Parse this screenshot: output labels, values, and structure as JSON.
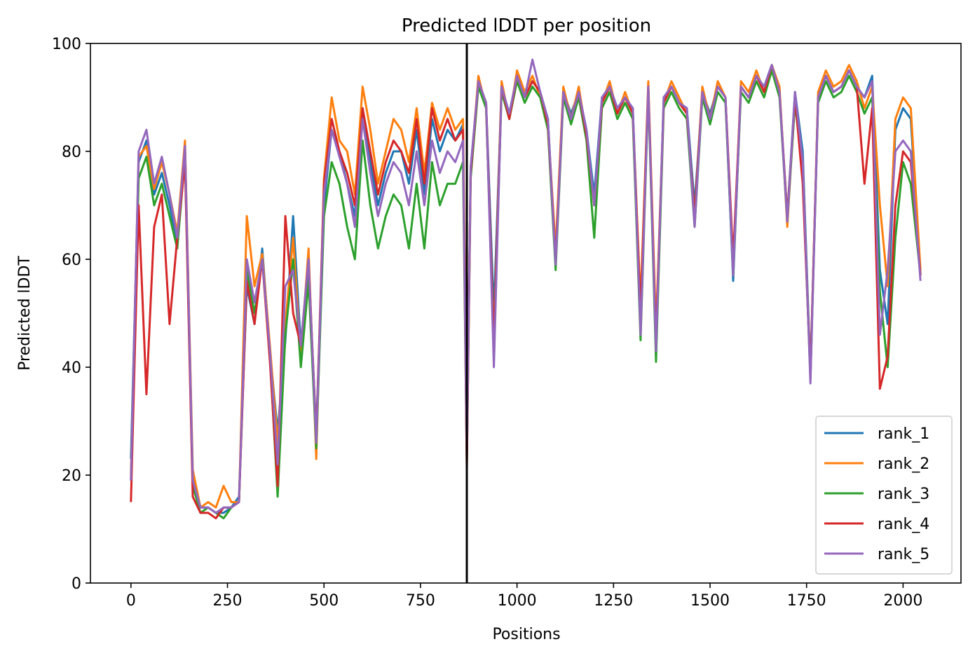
{
  "chart_data": {
    "type": "line",
    "title": "Predicted lDDT per position",
    "xlabel": "Positions",
    "ylabel": "Predicted lDDT",
    "xlim": [
      -105,
      2150
    ],
    "ylim": [
      0,
      100
    ],
    "xticks": [
      0,
      250,
      500,
      750,
      1000,
      1250,
      1500,
      1750,
      2000
    ],
    "yticks": [
      0,
      20,
      40,
      60,
      80,
      100
    ],
    "vline": 870,
    "legend_position": "lower-right",
    "x": [
      0,
      20,
      40,
      60,
      80,
      100,
      120,
      140,
      160,
      180,
      200,
      220,
      240,
      260,
      280,
      300,
      320,
      340,
      360,
      380,
      400,
      420,
      440,
      460,
      480,
      500,
      520,
      540,
      560,
      580,
      600,
      620,
      640,
      660,
      680,
      700,
      720,
      740,
      760,
      780,
      800,
      820,
      840,
      860,
      870,
      880,
      900,
      920,
      940,
      960,
      980,
      1000,
      1020,
      1040,
      1060,
      1080,
      1100,
      1120,
      1140,
      1160,
      1180,
      1200,
      1220,
      1240,
      1260,
      1280,
      1300,
      1320,
      1340,
      1360,
      1380,
      1400,
      1420,
      1440,
      1460,
      1480,
      1500,
      1520,
      1540,
      1560,
      1580,
      1600,
      1620,
      1640,
      1660,
      1680,
      1700,
      1720,
      1740,
      1760,
      1780,
      1800,
      1820,
      1840,
      1860,
      1880,
      1900,
      1920,
      1940,
      1960,
      1980,
      2000,
      2020,
      2045
    ],
    "series": [
      {
        "name": "rank_1",
        "color": "#1f77b4",
        "values": [
          23,
          78,
          82,
          72,
          76,
          70,
          63,
          81,
          20,
          14,
          14,
          13,
          13,
          14,
          16,
          55,
          48,
          62,
          43,
          28,
          45,
          68,
          44,
          58,
          28,
          70,
          84,
          80,
          74,
          68,
          88,
          78,
          70,
          76,
          80,
          80,
          74,
          84,
          72,
          86,
          80,
          84,
          82,
          85,
          24,
          77,
          93,
          89,
          50,
          92,
          87,
          94,
          90,
          93,
          91,
          86,
          60,
          91,
          87,
          91,
          84,
          72,
          90,
          92,
          88,
          90,
          88,
          50,
          92,
          45,
          90,
          92,
          89,
          88,
          70,
          91,
          87,
          92,
          90,
          56,
          92,
          90,
          94,
          92,
          96,
          91,
          68,
          91,
          80,
          39,
          90,
          94,
          91,
          92,
          95,
          92,
          90,
          94,
          58,
          48,
          84,
          88,
          86,
          57
        ]
      },
      {
        "name": "rank_2",
        "color": "#ff7f0e",
        "values": [
          20,
          79,
          81,
          73,
          78,
          72,
          65,
          82,
          21,
          14,
          15,
          14,
          18,
          15,
          15,
          68,
          55,
          61,
          44,
          26,
          48,
          64,
          42,
          62,
          23,
          75,
          90,
          82,
          80,
          72,
          92,
          84,
          74,
          80,
          86,
          84,
          78,
          88,
          76,
          89,
          84,
          88,
          84,
          86,
          28,
          76,
          94,
          88,
          45,
          93,
          86,
          95,
          91,
          94,
          90,
          85,
          62,
          92,
          86,
          92,
          83,
          70,
          89,
          93,
          87,
          91,
          87,
          52,
          93,
          47,
          89,
          93,
          90,
          87,
          68,
          92,
          86,
          93,
          90,
          58,
          93,
          91,
          95,
          91,
          96,
          92,
          66,
          90,
          78,
          38,
          91,
          95,
          92,
          93,
          96,
          93,
          88,
          92,
          70,
          55,
          86,
          90,
          88,
          58
        ]
      },
      {
        "name": "rank_3",
        "color": "#2ca02c",
        "values": [
          19,
          75,
          79,
          70,
          74,
          68,
          62,
          79,
          18,
          13,
          14,
          13,
          12,
          14,
          15,
          58,
          50,
          60,
          42,
          16,
          46,
          60,
          40,
          56,
          25,
          68,
          78,
          74,
          66,
          60,
          82,
          70,
          62,
          68,
          72,
          70,
          62,
          74,
          62,
          78,
          70,
          74,
          74,
          78,
          22,
          75,
          92,
          88,
          44,
          91,
          86,
          93,
          89,
          92,
          90,
          84,
          58,
          90,
          85,
          90,
          82,
          64,
          88,
          91,
          86,
          89,
          86,
          45,
          91,
          41,
          88,
          91,
          88,
          86,
          66,
          90,
          85,
          91,
          89,
          57,
          91,
          89,
          93,
          90,
          95,
          90,
          67,
          89,
          76,
          38,
          89,
          93,
          90,
          91,
          94,
          91,
          87,
          90,
          54,
          40,
          64,
          78,
          74,
          57
        ]
      },
      {
        "name": "rank_4",
        "color": "#d62728",
        "values": [
          15,
          70,
          35,
          66,
          72,
          48,
          64,
          78,
          16,
          13,
          13,
          12,
          14,
          14,
          15,
          56,
          48,
          60,
          41,
          18,
          68,
          50,
          44,
          60,
          27,
          74,
          86,
          80,
          76,
          70,
          88,
          80,
          72,
          78,
          82,
          80,
          76,
          86,
          74,
          88,
          82,
          86,
          82,
          84,
          21,
          76,
          93,
          89,
          44,
          92,
          86,
          94,
          90,
          93,
          91,
          85,
          60,
          91,
          86,
          91,
          83,
          70,
          89,
          92,
          87,
          90,
          87,
          50,
          92,
          45,
          89,
          92,
          89,
          87,
          68,
          91,
          86,
          92,
          90,
          60,
          92,
          90,
          94,
          91,
          96,
          91,
          68,
          90,
          74,
          39,
          90,
          94,
          91,
          92,
          95,
          92,
          74,
          88,
          36,
          42,
          70,
          80,
          78,
          57
        ]
      },
      {
        "name": "rank_5",
        "color": "#9467bd",
        "values": [
          19,
          80,
          84,
          74,
          79,
          72,
          64,
          81,
          19,
          14,
          14,
          13,
          14,
          14,
          15,
          60,
          52,
          60,
          43,
          22,
          55,
          58,
          44,
          60,
          26,
          72,
          84,
          79,
          74,
          66,
          86,
          76,
          68,
          74,
          78,
          76,
          70,
          80,
          70,
          82,
          76,
          80,
          78,
          82,
          24,
          77,
          93,
          89,
          40,
          92,
          87,
          94,
          90,
          97,
          91,
          86,
          59,
          91,
          86,
          91,
          84,
          70,
          90,
          92,
          88,
          90,
          88,
          46,
          92,
          43,
          90,
          92,
          89,
          88,
          66,
          91,
          86,
          92,
          90,
          57,
          92,
          90,
          94,
          92,
          96,
          91,
          67,
          91,
          78,
          37,
          90,
          94,
          91,
          92,
          95,
          92,
          90,
          93,
          46,
          58,
          80,
          82,
          80,
          56
        ]
      }
    ]
  }
}
